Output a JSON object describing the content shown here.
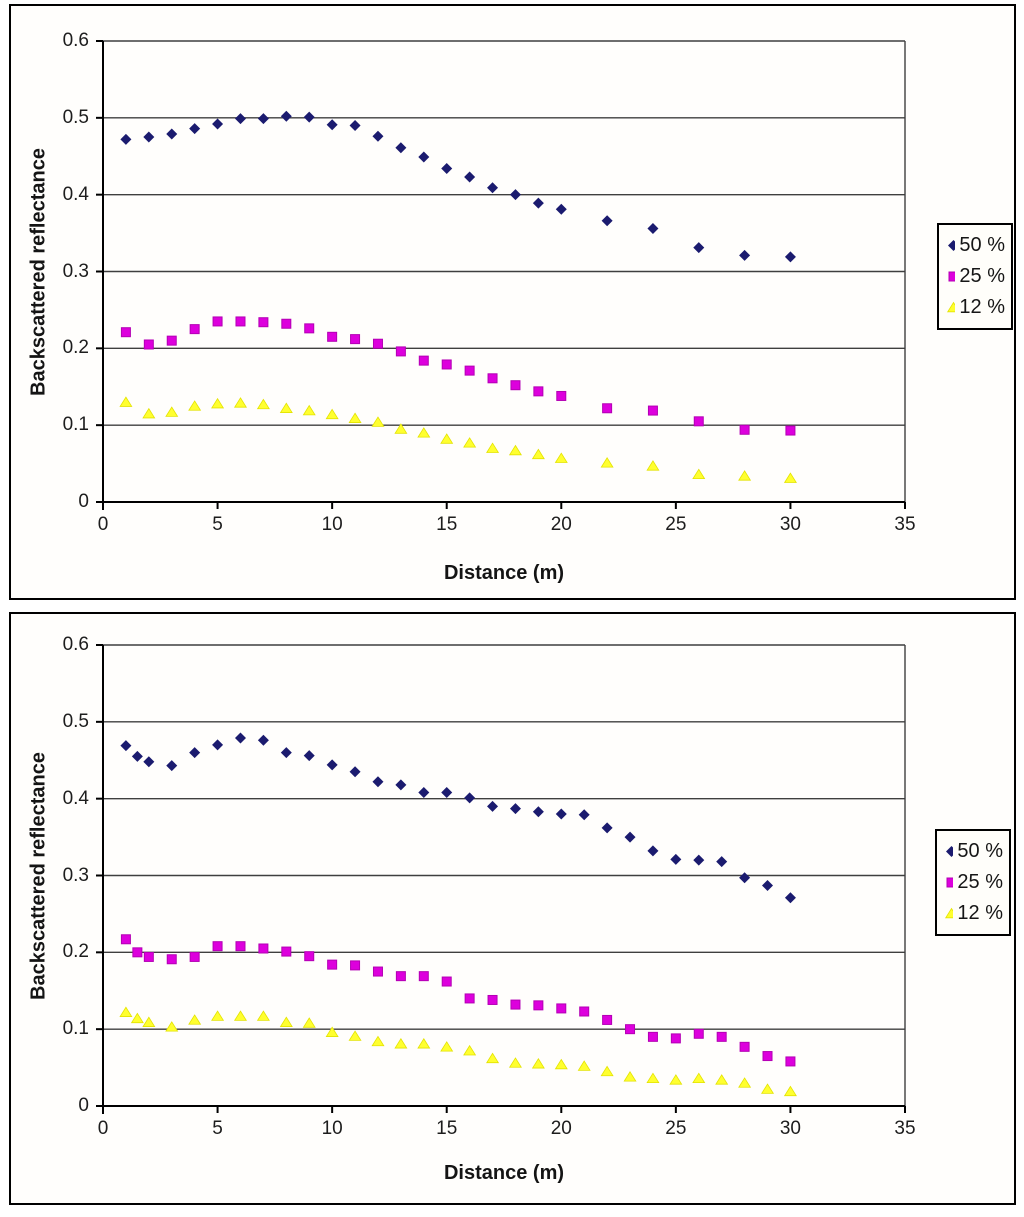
{
  "chart_data": [
    {
      "type": "scatter",
      "title": "",
      "xlabel": "Distance (m)",
      "ylabel": "Backscattered reflectance",
      "xlim": [
        0,
        35
      ],
      "ylim": [
        0,
        0.6
      ],
      "x_tick_values": [
        0,
        5,
        10,
        15,
        20,
        25,
        30,
        35
      ],
      "x_tick_labels": [
        "0",
        "5",
        "10",
        "15",
        "20",
        "25",
        "30",
        "35"
      ],
      "y_tick_values": [
        0,
        0.1,
        0.2,
        0.3,
        0.4,
        0.5,
        0.6
      ],
      "y_tick_labels": [
        "0",
        "0.1",
        "0.2",
        "0.3",
        "0.4",
        "0.5",
        "0.6"
      ],
      "grid": "horizontal",
      "legend_position": "right-outside",
      "x": [
        1,
        2,
        3,
        4,
        5,
        6,
        7,
        8,
        9,
        10,
        11,
        12,
        13,
        14,
        15,
        16,
        17,
        18,
        19,
        20,
        22,
        24,
        26,
        28,
        30
      ],
      "series": [
        {
          "name": "50 %",
          "marker": "diamond",
          "color": "#1b1b6f",
          "edge": "#101050",
          "values": [
            0.472,
            0.475,
            0.479,
            0.486,
            0.492,
            0.499,
            0.499,
            0.502,
            0.501,
            0.491,
            0.49,
            0.476,
            0.461,
            0.449,
            0.434,
            0.423,
            0.409,
            0.4,
            0.389,
            0.381,
            0.366,
            0.356,
            0.331,
            0.321,
            0.319
          ]
        },
        {
          "name": "25 %",
          "marker": "square",
          "color": "#dd00dd",
          "edge": "#b400b4",
          "values": [
            0.221,
            0.205,
            0.21,
            0.225,
            0.235,
            0.235,
            0.234,
            0.232,
            0.226,
            0.215,
            0.212,
            0.206,
            0.196,
            0.184,
            0.179,
            0.171,
            0.161,
            0.152,
            0.144,
            0.138,
            0.122,
            0.119,
            0.105,
            0.094,
            0.093
          ]
        },
        {
          "name": "12 %",
          "marker": "triangle",
          "color": "#ffff2f",
          "edge": "#e3e300",
          "values": [
            0.13,
            0.115,
            0.117,
            0.125,
            0.128,
            0.129,
            0.127,
            0.122,
            0.119,
            0.114,
            0.109,
            0.104,
            0.095,
            0.09,
            0.082,
            0.077,
            0.07,
            0.067,
            0.062,
            0.057,
            0.051,
            0.047,
            0.036,
            0.034,
            0.031
          ]
        }
      ]
    },
    {
      "type": "scatter",
      "title": "",
      "xlabel": "Distance (m)",
      "ylabel": "Backscattered reflectance",
      "xlim": [
        0,
        35
      ],
      "ylim": [
        0,
        0.6
      ],
      "x_tick_values": [
        0,
        5,
        10,
        15,
        20,
        25,
        30,
        35
      ],
      "x_tick_labels": [
        "0",
        "5",
        "10",
        "15",
        "20",
        "25",
        "30",
        "35"
      ],
      "y_tick_values": [
        0,
        0.1,
        0.2,
        0.3,
        0.4,
        0.5,
        0.6
      ],
      "y_tick_labels": [
        "0",
        "0.1",
        "0.2",
        "0.3",
        "0.4",
        "0.5",
        "0.6"
      ],
      "grid": "horizontal",
      "legend_position": "right-outside",
      "x": [
        1,
        1.5,
        2,
        3,
        4,
        5,
        6,
        7,
        8,
        9,
        10,
        11,
        12,
        13,
        14,
        15,
        16,
        17,
        18,
        19,
        20,
        21,
        22,
        23,
        24,
        25,
        26,
        27,
        28,
        29,
        30
      ],
      "series": [
        {
          "name": "50 %",
          "marker": "diamond",
          "color": "#1b1b6f",
          "edge": "#101050",
          "values": [
            0.469,
            0.455,
            0.448,
            0.443,
            0.46,
            0.47,
            0.479,
            0.476,
            0.46,
            0.456,
            0.444,
            0.435,
            0.422,
            0.418,
            0.408,
            0.408,
            0.401,
            0.39,
            0.387,
            0.383,
            0.38,
            0.379,
            0.362,
            0.35,
            0.332,
            0.321,
            0.32,
            0.318,
            0.297,
            0.287,
            0.271
          ]
        },
        {
          "name": "25 %",
          "marker": "square",
          "color": "#dd00dd",
          "edge": "#b400b4",
          "values": [
            0.217,
            0.2,
            0.194,
            0.191,
            0.194,
            0.208,
            0.208,
            0.205,
            0.201,
            0.195,
            0.184,
            0.183,
            0.175,
            0.169,
            0.169,
            0.162,
            0.14,
            0.138,
            0.132,
            0.131,
            0.127,
            0.123,
            0.112,
            0.1,
            0.09,
            0.088,
            0.094,
            0.09,
            0.077,
            0.065,
            0.058
          ]
        },
        {
          "name": "12 %",
          "marker": "triangle",
          "color": "#ffff2f",
          "edge": "#e3e300",
          "values": [
            0.122,
            0.114,
            0.109,
            0.103,
            0.112,
            0.117,
            0.117,
            0.117,
            0.109,
            0.108,
            0.096,
            0.091,
            0.084,
            0.081,
            0.081,
            0.077,
            0.072,
            0.062,
            0.056,
            0.055,
            0.054,
            0.052,
            0.045,
            0.038,
            0.036,
            0.034,
            0.036,
            0.034,
            0.03,
            0.022,
            0.019
          ]
        }
      ]
    }
  ],
  "style": {
    "grid_color": "#3f3f3f",
    "axis_color": "#000000",
    "frame_background": "#fffefc"
  }
}
